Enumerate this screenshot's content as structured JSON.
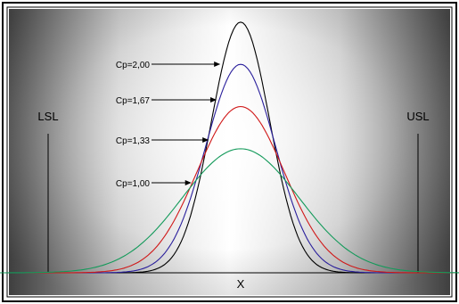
{
  "chart_data": {
    "type": "line",
    "xlabel": "X",
    "spec_limits": {
      "lower_label": "LSL",
      "upper_label": "USL"
    },
    "series": [
      {
        "name": "Cp=2,00",
        "color": "#000000",
        "sigma": 0.1667,
        "peak": 0.95
      },
      {
        "name": "Cp=1,67",
        "color": "#2a1f9c",
        "sigma": 0.2,
        "peak": 0.79
      },
      {
        "name": "Cp=1,33",
        "color": "#d01818",
        "sigma": 0.25,
        "peak": 0.63
      },
      {
        "name": "Cp=1,00",
        "color": "#139a5a",
        "sigma": 0.3333,
        "peak": 0.47
      }
    ],
    "x_range": [
      -1.5,
      1.5
    ],
    "spec_positions": [
      -1.0,
      1.0
    ],
    "grid": false,
    "legend": "arrow annotations"
  }
}
